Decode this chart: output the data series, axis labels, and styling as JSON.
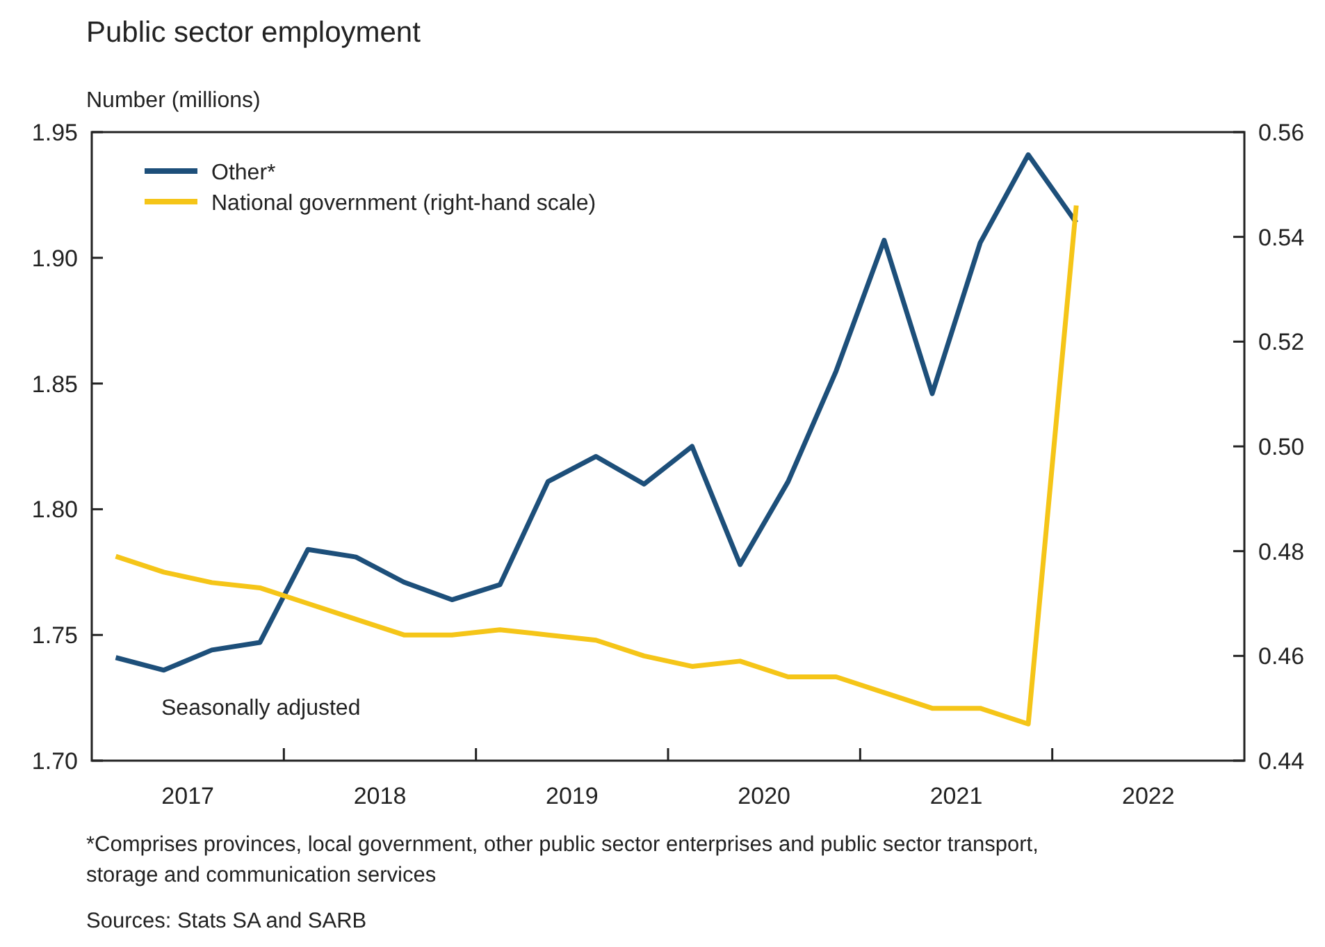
{
  "chart_data": {
    "type": "line",
    "title": "Public sector employment",
    "ylabel": "Number (millions)",
    "x": [
      2017.125,
      2017.375,
      2017.625,
      2017.875,
      2018.125,
      2018.375,
      2018.625,
      2018.875,
      2019.125,
      2019.375,
      2019.625,
      2019.875,
      2020.125,
      2020.375,
      2020.625,
      2020.875,
      2021.125,
      2021.375,
      2021.625,
      2021.875,
      2022.125
    ],
    "xlim": [
      2017,
      2023
    ],
    "xticks": [
      {
        "value": 2017.5,
        "label": "2017"
      },
      {
        "value": 2018,
        "label": null
      },
      {
        "value": 2018.5,
        "label": "2018"
      },
      {
        "value": 2019,
        "label": null
      },
      {
        "value": 2019.5,
        "label": "2019"
      },
      {
        "value": 2020,
        "label": null
      },
      {
        "value": 2020.5,
        "label": "2020"
      },
      {
        "value": 2021,
        "label": null
      },
      {
        "value": 2021.5,
        "label": "2021"
      },
      {
        "value": 2022,
        "label": null
      },
      {
        "value": 2022.5,
        "label": "2022"
      }
    ],
    "ylim": [
      1.7,
      1.95
    ],
    "yticks": [
      {
        "value": 1.7,
        "label": "1.70"
      },
      {
        "value": 1.75,
        "label": "1.75"
      },
      {
        "value": 1.8,
        "label": "1.80"
      },
      {
        "value": 1.85,
        "label": "1.85"
      },
      {
        "value": 1.9,
        "label": "1.90"
      },
      {
        "value": 1.95,
        "label": "1.95"
      }
    ],
    "y2lim": [
      0.44,
      0.56
    ],
    "y2ticks": [
      {
        "value": 0.44,
        "label": "0.44"
      },
      {
        "value": 0.46,
        "label": "0.46"
      },
      {
        "value": 0.48,
        "label": "0.48"
      },
      {
        "value": 0.5,
        "label": "0.50"
      },
      {
        "value": 0.52,
        "label": "0.52"
      },
      {
        "value": 0.54,
        "label": "0.54"
      },
      {
        "value": 0.56,
        "label": "0.56"
      }
    ],
    "series": [
      {
        "name": "Other*",
        "color": "#1d4f7a",
        "values": [
          1.741,
          1.736,
          1.744,
          1.747,
          1.784,
          1.781,
          1.771,
          1.764,
          1.77,
          1.811,
          1.821,
          1.81,
          1.825,
          1.778,
          1.811,
          1.855,
          1.907,
          1.846,
          1.906,
          1.941,
          1.914
        ]
      },
      {
        "name": "National government (right-hand scale)",
        "color": "#f5c518",
        "axis": "y2",
        "values": [
          0.479,
          0.476,
          0.474,
          0.473,
          0.47,
          0.467,
          0.464,
          0.464,
          0.465,
          0.464,
          0.463,
          0.46,
          0.458,
          0.459,
          0.456,
          0.456,
          0.453,
          0.45,
          0.45,
          0.447,
          0.546
        ]
      }
    ],
    "legend": "top left",
    "grid": false,
    "marker": "none",
    "line_style": "solid",
    "annotations": [
      "Seasonally adjusted",
      "*Comprises provinces, local government, other public sector enterprises and public sector transport, storage and communication services",
      "Sources: Stats SA and SARB"
    ]
  }
}
